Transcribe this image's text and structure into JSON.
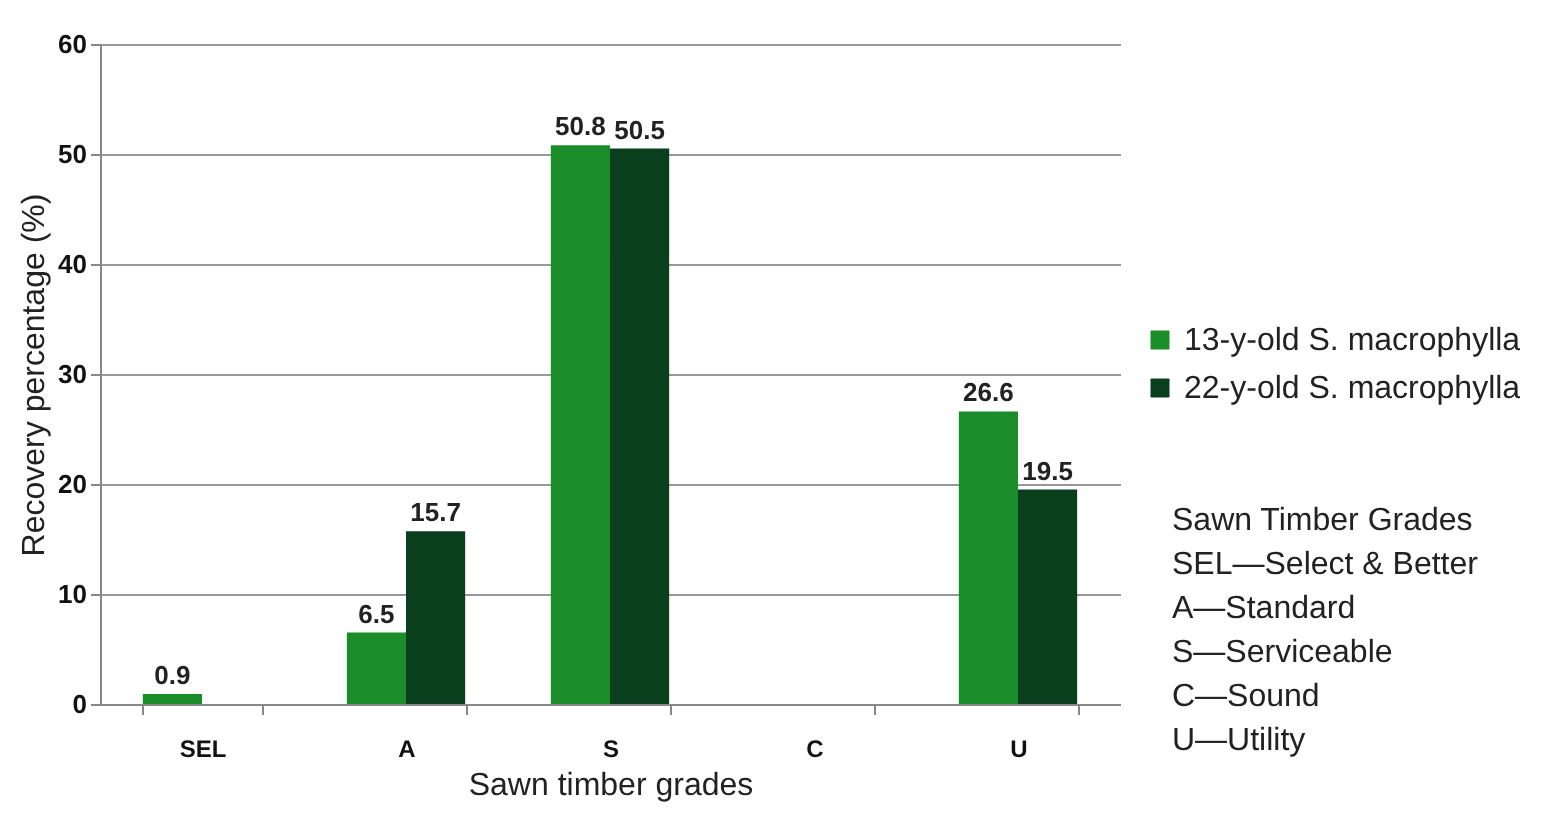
{
  "chart_data": {
    "type": "bar",
    "xlabel": "Sawn timber grades",
    "ylabel": "Recovery percentage (%)",
    "categories": [
      "SEL",
      "A",
      "S",
      "C",
      "U"
    ],
    "series": [
      {
        "name": "13-y-old S. macrophylla",
        "color": "#1a8c2a",
        "values": [
          0.9,
          6.5,
          50.8,
          null,
          26.6
        ]
      },
      {
        "name": "22-y-old S. macrophylla",
        "color": "#0a3f1e",
        "values": [
          null,
          15.7,
          50.5,
          null,
          19.5
        ]
      }
    ],
    "ylim": [
      0,
      60
    ],
    "yticks": [
      0,
      10,
      20,
      30,
      40,
      50,
      60
    ],
    "grid": "y",
    "legend": "right",
    "data_labels": true,
    "annotations": [
      "Sawn Timber Grades",
      "SEL—Select & Better",
      "A—Standard",
      "S—Serviceable",
      "C—Sound",
      "U—Utility"
    ]
  }
}
